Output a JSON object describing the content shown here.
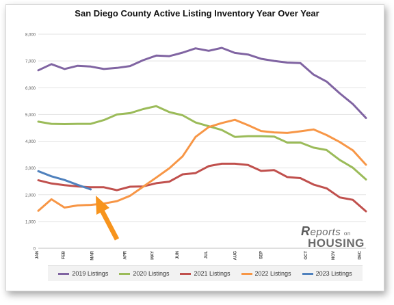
{
  "chart_data": {
    "type": "line",
    "title": "San Diego County Active Listing Inventory Year Over Year",
    "x_tick_labels": [
      "JAN",
      "FEB",
      "MAR",
      "APR",
      "MAY",
      "JUN",
      "JUL",
      "AUG",
      "SEP",
      "OCT",
      "NOV",
      "DEC"
    ],
    "y_tick_labels": [
      "0",
      "1,000",
      "2,000",
      "3,000",
      "4,000",
      "5,000",
      "6,000",
      "7,000",
      "8,000"
    ],
    "ylim": [
      0,
      8000
    ],
    "xlim": [
      0,
      25
    ],
    "grid": true,
    "legend_position": "bottom",
    "series": [
      {
        "name": "2019 Listings",
        "color": "#8064a2",
        "x": [
          0,
          1,
          2,
          3,
          4,
          5,
          6,
          7,
          8,
          9,
          10,
          11,
          12,
          13,
          14,
          15,
          16,
          17,
          18,
          19,
          20,
          21,
          22,
          23,
          24,
          25
        ],
        "values": [
          6650,
          6880,
          6700,
          6820,
          6790,
          6700,
          6740,
          6810,
          7030,
          7200,
          7180,
          7310,
          7470,
          7380,
          7490,
          7300,
          7240,
          7080,
          7000,
          6940,
          6920,
          6490,
          6230,
          5790,
          5390,
          4870
        ]
      },
      {
        "name": "2020 Listings",
        "color": "#9bbb59",
        "x": [
          0,
          1,
          2,
          3,
          4,
          5,
          6,
          7,
          8,
          9,
          10,
          11,
          12,
          13,
          14,
          15,
          16,
          17,
          18,
          19,
          20,
          21,
          22,
          23,
          24,
          25
        ],
        "values": [
          4730,
          4650,
          4640,
          4650,
          4650,
          4790,
          5000,
          5050,
          5200,
          5310,
          5090,
          4970,
          4700,
          4560,
          4420,
          4160,
          4190,
          4190,
          4170,
          3950,
          3950,
          3760,
          3670,
          3300,
          3010,
          2570
        ]
      },
      {
        "name": "2021 Listings",
        "color": "#c0504d",
        "x": [
          0,
          1,
          2,
          3,
          4,
          5,
          6,
          7,
          8,
          9,
          10,
          11,
          12,
          13,
          14,
          15,
          16,
          17,
          18,
          19,
          20,
          21,
          22,
          23,
          24,
          25
        ],
        "values": [
          2540,
          2420,
          2360,
          2310,
          2280,
          2280,
          2170,
          2300,
          2310,
          2430,
          2490,
          2760,
          2810,
          3070,
          3160,
          3160,
          3110,
          2890,
          2920,
          2660,
          2620,
          2380,
          2240,
          1900,
          1810,
          1380
        ]
      },
      {
        "name": "2022 Listings",
        "color": "#f79646",
        "x": [
          0,
          1,
          2,
          3,
          4,
          5,
          6,
          7,
          8,
          9,
          10,
          11,
          12,
          13,
          14,
          15,
          16,
          17,
          18,
          19,
          20,
          21,
          22,
          23,
          24,
          25
        ],
        "values": [
          1400,
          1830,
          1520,
          1600,
          1620,
          1670,
          1760,
          1960,
          2300,
          2640,
          2990,
          3430,
          4160,
          4530,
          4680,
          4800,
          4600,
          4380,
          4330,
          4310,
          4370,
          4440,
          4230,
          3970,
          3660,
          3120
        ]
      },
      {
        "name": "2023 Listings",
        "color": "#4f81bd",
        "x": [
          0,
          1,
          2,
          3,
          4
        ],
        "values": [
          2880,
          2690,
          2550,
          2370,
          2200
        ]
      }
    ]
  },
  "logo": {
    "brand_r": "R",
    "brand_word": "eports",
    "brand_on": "on",
    "brand_housing": "HOUSING"
  },
  "annotation_arrow_color": "#f7941d"
}
